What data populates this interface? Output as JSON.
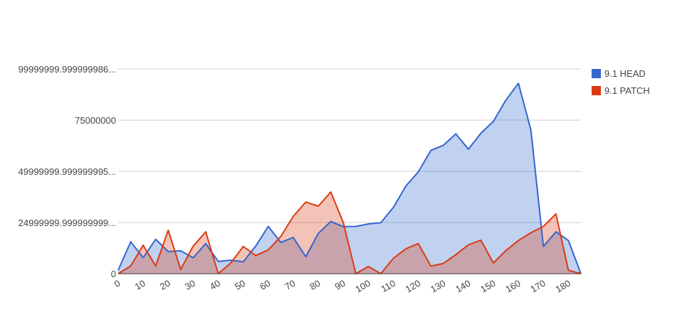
{
  "chart_data": {
    "type": "area",
    "title": "",
    "xlabel": "",
    "ylabel": "",
    "x": [
      0,
      5,
      10,
      15,
      20,
      25,
      30,
      35,
      40,
      45,
      50,
      55,
      60,
      65,
      70,
      75,
      80,
      85,
      90,
      95,
      100,
      105,
      110,
      115,
      120,
      125,
      130,
      135,
      140,
      145,
      150,
      155,
      160,
      165,
      170,
      175,
      180,
      185
    ],
    "xlim": [
      0,
      185
    ],
    "ylim": [
      0,
      100000000
    ],
    "x_ticks": [
      "0",
      "10",
      "20",
      "30",
      "40",
      "50",
      "60",
      "70",
      "80",
      "90",
      "100",
      "110",
      "120",
      "130",
      "140",
      "150",
      "160",
      "170",
      "180"
    ],
    "x_tick_values": [
      0,
      10,
      20,
      30,
      40,
      50,
      60,
      70,
      80,
      90,
      100,
      110,
      120,
      130,
      140,
      150,
      160,
      170,
      180
    ],
    "y_ticks": [
      "0",
      "24999999.999999999...",
      "49999999.999999995...",
      "75000000",
      "99999999.999999986..."
    ],
    "y_tick_values": [
      0,
      25000000,
      50000000,
      75000000,
      100000000
    ],
    "grid": true,
    "legend_position": "right",
    "series": [
      {
        "name": "9.1 HEAD",
        "color": "#3366cc",
        "values": [
          1700000,
          15600000,
          7800000,
          16800000,
          10800000,
          11200000,
          7800000,
          14700000,
          6000000,
          6600000,
          5800000,
          13500000,
          23100000,
          15300000,
          17700000,
          8300000,
          19700000,
          25500000,
          23000000,
          23100000,
          24300000,
          24900000,
          32400000,
          42800000,
          49800000,
          60200000,
          62700000,
          68300000,
          60800000,
          68600000,
          74400000,
          84800000,
          93000000,
          70300000,
          13300000,
          20500000,
          16200000,
          0
        ]
      },
      {
        "name": "9.1 PATCH",
        "color": "#dc3912",
        "values": [
          0,
          3800000,
          13900000,
          3800000,
          21200000,
          2100000,
          13500000,
          20500000,
          0,
          5200000,
          13300000,
          8900000,
          11600000,
          18200000,
          28000000,
          35000000,
          33000000,
          39900000,
          25000000,
          0,
          3500000,
          0,
          7500000,
          12200000,
          14700000,
          3700000,
          5000000,
          9300000,
          14100000,
          16400000,
          5200000,
          11300000,
          16200000,
          20000000,
          23100000,
          29200000,
          1700000,
          0
        ]
      }
    ]
  }
}
